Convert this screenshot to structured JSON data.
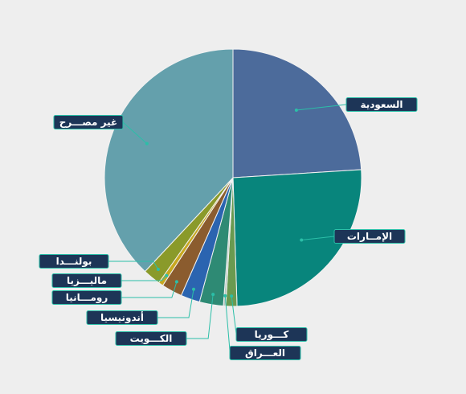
{
  "chart_data": {
    "type": "pie",
    "title": "",
    "start_angle_deg": 0,
    "direction": "clockwise",
    "slices": [
      {
        "label": "السعودية",
        "value": 24.0,
        "color": "#4c6b9b"
      },
      {
        "label": "الإمــارات",
        "value": 25.5,
        "color": "#08857c"
      },
      {
        "label": "كـــوريا",
        "value": 1.4,
        "color": "#6a9a50"
      },
      {
        "label": "العـــراق",
        "value": 0.3,
        "color": "#b8c8c0"
      },
      {
        "label": "الكـــويت",
        "value": 3.0,
        "color": "#2e8a74"
      },
      {
        "label": "أندونيسيا",
        "value": 2.4,
        "color": "#2b64b0"
      },
      {
        "label": "رومـــانيا",
        "value": 2.6,
        "color": "#8b5c2e"
      },
      {
        "label": "ماليـــزيا",
        "value": 0.6,
        "color": "#c8a820"
      },
      {
        "label": "بولنـــدا",
        "value": 2.2,
        "color": "#8a9a2a"
      },
      {
        "label": "غير مصـــرح",
        "value": 38.0,
        "color": "#64a0ac"
      }
    ],
    "label_style": {
      "box_fill": "#1d3557",
      "box_stroke": "#2bbfa8",
      "leader_color": "#2bbfa8"
    }
  }
}
